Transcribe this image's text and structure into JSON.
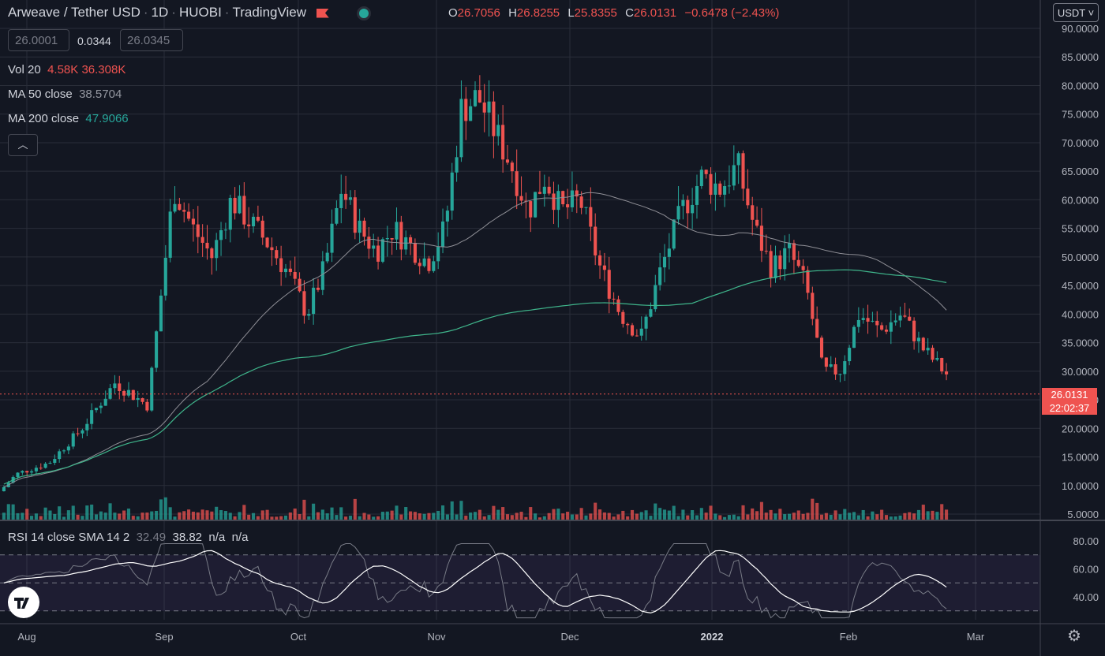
{
  "header": {
    "symbol": "Arweave / Tether USD",
    "interval": "1D",
    "exchange": "HUOBI",
    "publisher": "TradingView",
    "ohlc": {
      "o_label": "O",
      "o": "26.7056",
      "h_label": "H",
      "h": "26.8255",
      "l_label": "L",
      "l": "25.8355",
      "c_label": "C",
      "c": "26.0131",
      "change": "−0.6478 (−2.43%)"
    }
  },
  "trade": {
    "sell": "26.0001",
    "spread": "0.0344",
    "buy": "26.0345"
  },
  "indicators": {
    "vol": {
      "label": "Vol 20",
      "v1": "4.58K",
      "v2": "36.308K"
    },
    "ma50": {
      "label": "MA 50 close",
      "value": "38.5704"
    },
    "ma200": {
      "label": "MA 200 close",
      "value": "47.9066"
    },
    "rsi": {
      "label": "RSI 14 close SMA 14 2",
      "v1": "32.49",
      "v2": "38.82",
      "v3": "n/a",
      "v4": "n/a"
    }
  },
  "currency_button": "USDT",
  "collapse_icon": "chevron-up-icon",
  "price_tag": {
    "price": "26.0131",
    "countdown": "22:02:37"
  },
  "colors": {
    "up": "#26a69a",
    "down": "#ef5350",
    "ma50": "#8f8f96",
    "ma200": "#3fb58b",
    "rsi": "#ffffff",
    "bg": "#131722"
  },
  "price_axis": [
    "90.0000",
    "85.0000",
    "80.0000",
    "75.0000",
    "70.0000",
    "65.0000",
    "60.0000",
    "55.0000",
    "50.0000",
    "45.0000",
    "40.0000",
    "35.0000",
    "30.0000",
    "25.0000",
    "20.0000",
    "15.0000",
    "10.0000",
    "5.0000"
  ],
  "rsi_axis": [
    "80.00",
    "60.00",
    "40.00"
  ],
  "time_axis": [
    "Aug",
    "Sep",
    "Oct",
    "Nov",
    "Dec",
    "2022",
    "Feb",
    "Mar"
  ],
  "chart_data": {
    "type": "candlestick",
    "x_range": [
      "Aug",
      "Mar"
    ],
    "ylim": [
      5,
      90
    ],
    "rsi_ylim": [
      20,
      85
    ],
    "anchors": [
      [
        "Aug",
        12
      ],
      [
        "Aug",
        14
      ],
      [
        "Aug",
        20
      ],
      [
        "Aug",
        28
      ],
      [
        "Aug",
        24
      ],
      [
        "Sep",
        62
      ],
      [
        "Sep",
        55
      ],
      [
        "Sep",
        50
      ],
      [
        "Sep",
        60
      ],
      [
        "Sep",
        56
      ],
      [
        "Sep",
        52
      ],
      [
        "Sep",
        47
      ],
      [
        "Oct",
        40
      ],
      [
        "Oct",
        48
      ],
      [
        "Oct",
        62
      ],
      [
        "Oct",
        55
      ],
      [
        "Oct",
        51
      ],
      [
        "Oct",
        55
      ],
      [
        "Oct",
        52
      ],
      [
        "Oct",
        49
      ],
      [
        "Nov",
        55
      ],
      [
        "Nov",
        76
      ],
      [
        "Nov",
        78
      ],
      [
        "Nov",
        72
      ],
      [
        "Nov",
        66
      ],
      [
        "Nov",
        58
      ],
      [
        "Nov",
        64
      ],
      [
        "Nov",
        58
      ],
      [
        "Dec",
        60
      ],
      [
        "Dec",
        48
      ],
      [
        "Dec",
        40
      ],
      [
        "Dec",
        36
      ],
      [
        "Dec",
        48
      ],
      [
        "Dec",
        58
      ],
      [
        "Dec",
        64
      ],
      [
        "2022",
        62
      ],
      [
        "2022",
        66
      ],
      [
        "2022",
        55
      ],
      [
        "2022",
        48
      ],
      [
        "2022",
        51
      ],
      [
        "2022",
        45
      ],
      [
        "2022",
        30
      ],
      [
        "2022",
        30
      ],
      [
        "Feb",
        40
      ],
      [
        "Feb",
        37
      ],
      [
        "Feb",
        40
      ],
      [
        "Feb",
        34
      ],
      [
        "Feb",
        30
      ],
      [
        "Feb",
        26
      ]
    ],
    "rsi_levels": [
      70,
      50,
      30
    ]
  }
}
